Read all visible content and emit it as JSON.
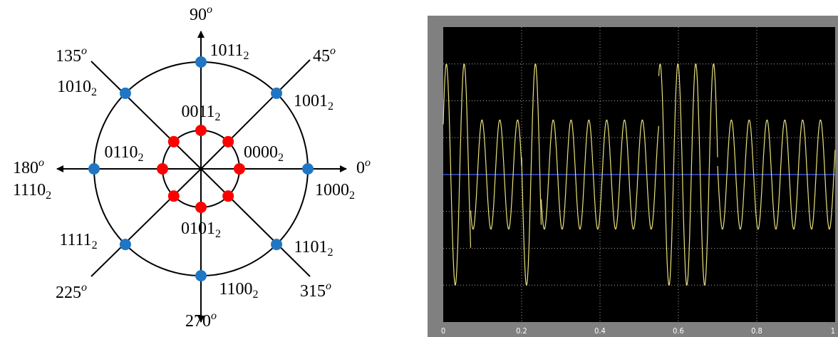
{
  "constellation": {
    "angles": [
      {
        "value": 0,
        "unit": "o"
      },
      {
        "value": 45,
        "unit": "o"
      },
      {
        "value": 90,
        "unit": "o"
      },
      {
        "value": 135,
        "unit": "o"
      },
      {
        "value": 180,
        "unit": "o"
      },
      {
        "value": 225,
        "unit": "o"
      },
      {
        "value": 270,
        "unit": "o"
      },
      {
        "value": 315,
        "unit": "o"
      }
    ],
    "outer_points": [
      {
        "label": "1000",
        "base": "2"
      },
      {
        "label": "1001",
        "base": "2"
      },
      {
        "label": "1011",
        "base": "2"
      },
      {
        "label": "1010",
        "base": "2"
      },
      {
        "label": "1110",
        "base": "2"
      },
      {
        "label": "1111",
        "base": "2"
      },
      {
        "label": "1101",
        "base": "2"
      },
      {
        "label": "1100",
        "base": "2"
      }
    ],
    "inner_points": [
      {
        "label": "0000",
        "base": "2"
      },
      {
        "label": "0011",
        "base": "2"
      },
      {
        "label": "0110",
        "base": "2"
      },
      {
        "label": "0101",
        "base": "2"
      }
    ]
  },
  "chart_data": {
    "type": "line",
    "xlim": [
      0,
      1
    ],
    "xticks": [
      0,
      0.2,
      0.4,
      0.6,
      0.8,
      1
    ],
    "ylim": [
      -1,
      1
    ],
    "yticks": [
      -0.75,
      -0.5,
      -0.25,
      0,
      0.25,
      0.5,
      0.75
    ],
    "frequency": 22,
    "color": "#e8e07a",
    "grid": true,
    "segments": [
      {
        "start": 0,
        "end": 0.07,
        "amplitude": 0.75
      },
      {
        "start": 0.07,
        "end": 0.2,
        "amplitude": 0.37
      },
      {
        "start": 0.2,
        "end": 0.25,
        "amplitude": 0.75
      },
      {
        "start": 0.25,
        "end": 0.55,
        "amplitude": 0.37
      },
      {
        "start": 0.55,
        "end": 0.7,
        "amplitude": 0.75
      },
      {
        "start": 0.7,
        "end": 1,
        "amplitude": 0.37
      }
    ]
  }
}
